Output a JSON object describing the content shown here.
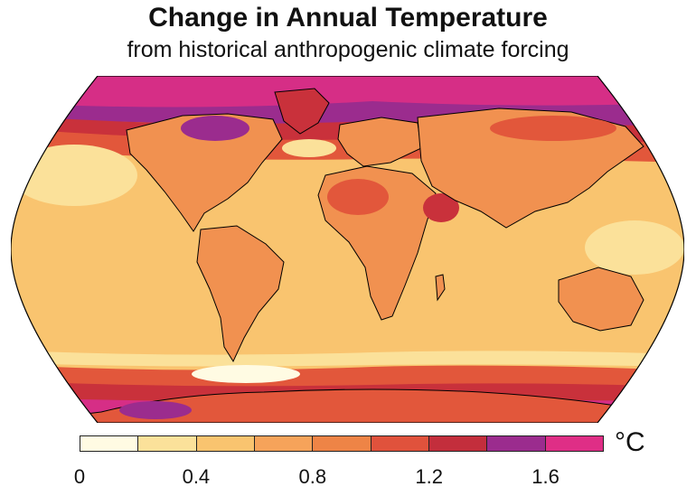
{
  "header": {
    "title": "Change in Annual Temperature",
    "subtitle": "from historical anthropogenic climate forcing"
  },
  "map": {
    "projection": "robinson",
    "variable": "annual temperature change",
    "palette": {
      "ocean_base": "#f9c46f",
      "cool_band": "#fbe19a",
      "warm": "#f6a35a",
      "land_warm": "#f19150",
      "hot": "#e2573b",
      "very_hot": "#c9313b",
      "arctic": "#9b2c8e",
      "polar": "#d62e86",
      "coastline": "#000000"
    }
  },
  "colorbar": {
    "unit": "°C",
    "min": 0,
    "max": 1.8,
    "step": 0.2,
    "colors": [
      "#fffbe3",
      "#fbe19a",
      "#f9c46f",
      "#f6a35a",
      "#ee8446",
      "#e0523c",
      "#c32e3c",
      "#9b2c8e",
      "#df2e86"
    ],
    "tick_labels": [
      "0",
      "0.4",
      "0.8",
      "1.2",
      "1.6"
    ],
    "tick_values": [
      0,
      0.4,
      0.8,
      1.2,
      1.6
    ]
  }
}
